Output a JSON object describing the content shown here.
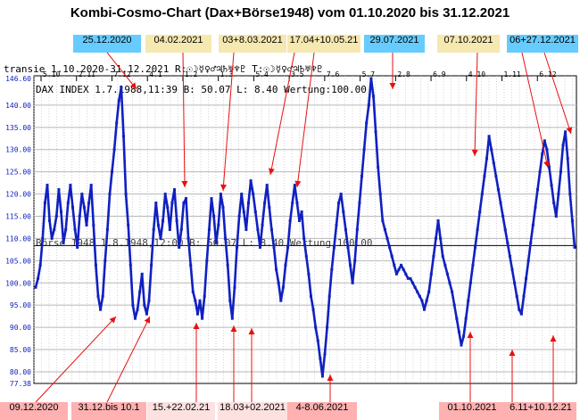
{
  "title": "Kombi-Cosmo-Chart (Dax+Börse1948) vom 01.10.2020 bis 31.12.2021",
  "header_line1": "transie 1.10.2020-31.12.2021   R:☉☽☿♀♂♃♄♅♆♇  T:☉☽☿♀♂♃♄♅♆♇",
  "header_line2": "DAX INDEX 1.7.1988,11:39 B: 50.07 L:  8.40 Wertung:100.00",
  "overlay_text": "Börse 1948 1.8.1948,12:00 B: 50.07 L:  8.40 Wertung:100.00",
  "month_ticks": [
    "5.10",
    "2.11",
    "7.12",
    "4.1",
    "1.2",
    "1.3",
    "5.4",
    "3.5",
    "7.6",
    "5.7",
    "2.8",
    "6.9",
    "4.10",
    "1.11",
    "6.12"
  ],
  "top_labels": [
    {
      "text": "25.12.2020",
      "bg": "#66ccff"
    },
    {
      "text": "04.02.2021",
      "bg": "#f5e8b0"
    },
    {
      "text": "03+8.03.2021",
      "bg": "#f5e8b0"
    },
    {
      "text": "17.04+10.05.21",
      "bg": "#f5e8b0"
    },
    {
      "text": "29.07.2021",
      "bg": "#66ccff"
    },
    {
      "text": "07.10.2021",
      "bg": "#f5e8b0"
    },
    {
      "text": "06+27.12.2021",
      "bg": "#66ccff"
    }
  ],
  "bottom_labels": [
    {
      "text": "09.12.2020",
      "bg": "#ffb0b0"
    },
    {
      "text": "31.12.bis 10.1",
      "bg": "#ffb0b0"
    },
    {
      "text": "15.+22.02.21",
      "bg": "#fde0e0"
    },
    {
      "text": "18.03+02.2021",
      "bg": "#fde0e0"
    },
    {
      "text": "4-8.06.2021",
      "bg": "#ffb0b0"
    },
    {
      "text": "01.10.2021",
      "bg": "#ffb0b0"
    },
    {
      "text": "6.11+10.12.21",
      "bg": "#ffb0b0"
    }
  ],
  "colors": {
    "series": "#1020c0",
    "arrows": "#e81010",
    "grid": "#b8b8b8",
    "axis_text": "#1020c0"
  },
  "chart_data": {
    "type": "line",
    "xlabel": "",
    "ylabel": "",
    "ylim": [
      77.38,
      146.6
    ],
    "yticks": [
      80,
      85,
      90,
      95,
      100,
      105,
      110,
      115,
      120,
      125,
      130,
      135,
      140
    ],
    "ymin_label": "77.38",
    "ymax_label": "146.60",
    "reference_line": 108.4,
    "series": [
      {
        "values": [
          99,
          101,
          104,
          110,
          118,
          122,
          114,
          110,
          112,
          115,
          121,
          116,
          109,
          112,
          118,
          122,
          117,
          112,
          108,
          115,
          120,
          117,
          113,
          118,
          122,
          113,
          104,
          97,
          94,
          97,
          105,
          112,
          120,
          125,
          130,
          136,
          141,
          144,
          133,
          120,
          113,
          104,
          95,
          92,
          94,
          98,
          102,
          95,
          93,
          96,
          104,
          112,
          118,
          113,
          110,
          114,
          120,
          117,
          112,
          118,
          121,
          114,
          108,
          112,
          118,
          119,
          110,
          104,
          98,
          96,
          93,
          96,
          92,
          97,
          105,
          112,
          119,
          115,
          109,
          113,
          120,
          117,
          110,
          104,
          96,
          92,
          99,
          108,
          115,
          120,
          116,
          112,
          118,
          123,
          120,
          116,
          112,
          108,
          113,
          118,
          122,
          117,
          112,
          108,
          103,
          100,
          96,
          99,
          104,
          108,
          114,
          118,
          122,
          118,
          114,
          116,
          110,
          106,
          102,
          97,
          94,
          90,
          87,
          83,
          79,
          84,
          90,
          97,
          103,
          108,
          113,
          118,
          120,
          116,
          112,
          108,
          104,
          100,
          105,
          112,
          118,
          124,
          130,
          136,
          140,
          146,
          142,
          134,
          126,
          120,
          114,
          112,
          110,
          108,
          106,
          104,
          102,
          103,
          104,
          103,
          102,
          101,
          101,
          100,
          99,
          98,
          97,
          96,
          94,
          96,
          98,
          102,
          106,
          110,
          114,
          110,
          106,
          104,
          102,
          100,
          98,
          95,
          92,
          89,
          86,
          88,
          92,
          96,
          100,
          104,
          108,
          112,
          116,
          120,
          124,
          128,
          133,
          130,
          127,
          124,
          121,
          118,
          115,
          112,
          109,
          106,
          103,
          100,
          97,
          94,
          93,
          97,
          101,
          105,
          109,
          113,
          117,
          121,
          125,
          129,
          132,
          130,
          126,
          122,
          118,
          115,
          120,
          125,
          131,
          134,
          128,
          120,
          114,
          108
        ]
      }
    ]
  }
}
